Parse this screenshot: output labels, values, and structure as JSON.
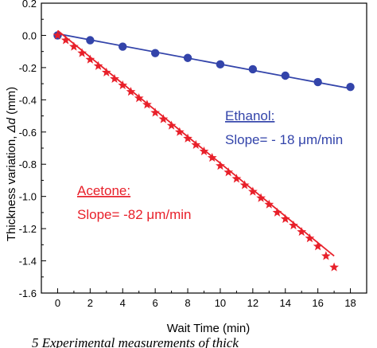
{
  "chart_data": {
    "type": "scatter",
    "title": "",
    "xlabel": "Wait Time (min)",
    "ylabel_prefix": "Thickness variation, ",
    "ylabel_symbol": "Δd",
    "ylabel_suffix": " (mm)",
    "xlim": [
      -1,
      19
    ],
    "ylim": [
      -1.6,
      0.2
    ],
    "xticks": [
      0,
      2,
      4,
      6,
      8,
      10,
      12,
      14,
      16,
      18
    ],
    "yticks": [
      0.2,
      0.0,
      -0.2,
      -0.4,
      -0.6,
      -0.8,
      -1.0,
      -1.2,
      -1.4,
      -1.6
    ],
    "ytick_labels": [
      "0.2",
      "0.0",
      "-0.2",
      "-0.4",
      "-0.6",
      "-0.8",
      "-1.0",
      "-1.2",
      "-1.4",
      "-1.6"
    ],
    "grid": false,
    "series": [
      {
        "name": "Ethanol",
        "color": "#3344aa",
        "marker": "circle",
        "x": [
          0,
          2,
          4,
          6,
          8,
          10,
          12,
          14,
          16,
          18
        ],
        "y": [
          0.0,
          -0.03,
          -0.07,
          -0.11,
          -0.14,
          -0.18,
          -0.21,
          -0.25,
          -0.29,
          -0.32
        ],
        "fit": {
          "x": [
            0,
            18
          ],
          "y": [
            0.01,
            -0.33
          ]
        }
      },
      {
        "name": "Acetone",
        "color": "#e8202a",
        "marker": "star",
        "x": [
          0,
          0.5,
          1,
          1.5,
          2,
          2.5,
          3,
          3.5,
          4,
          4.5,
          5,
          5.5,
          6,
          6.5,
          7,
          7.5,
          8,
          8.5,
          9,
          9.5,
          10,
          10.5,
          11,
          11.5,
          12,
          12.5,
          13,
          13.5,
          14,
          14.5,
          15,
          15.5,
          16,
          16.5,
          17
        ],
        "y": [
          0.0,
          -0.03,
          -0.07,
          -0.11,
          -0.15,
          -0.19,
          -0.23,
          -0.27,
          -0.31,
          -0.35,
          -0.39,
          -0.43,
          -0.48,
          -0.52,
          -0.56,
          -0.6,
          -0.64,
          -0.68,
          -0.72,
          -0.76,
          -0.81,
          -0.85,
          -0.89,
          -0.93,
          -0.97,
          -1.01,
          -1.05,
          -1.1,
          -1.14,
          -1.18,
          -1.22,
          -1.26,
          -1.31,
          -1.37,
          -1.44
        ],
        "fit": {
          "x": [
            0,
            17
          ],
          "y": [
            0.03,
            -1.37
          ]
        }
      }
    ],
    "annotations": {
      "ethanol_name": "Ethanol:",
      "ethanol_slope": "Slope= - 18 μm/min",
      "acetone_name": "Acetone:",
      "acetone_slope": "Slope= -82 μm/min"
    }
  },
  "caption_fragment": "5    Experimental measurements of thick"
}
